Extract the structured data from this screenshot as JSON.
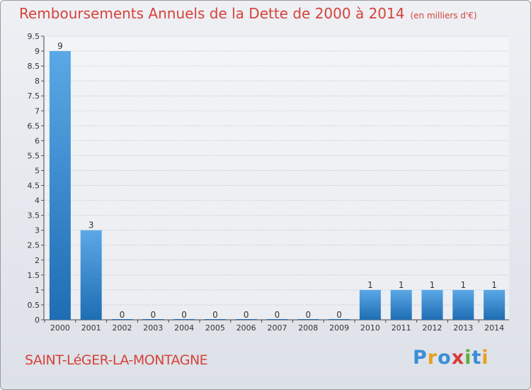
{
  "header": {
    "title": "Remboursements Annuels de la Dette de 2000 à 2014",
    "unit": "(en milliers d'€)"
  },
  "footer": {
    "commune": "SAINT-LéGER-LA-MONTAGNE",
    "logo_letters": [
      "P",
      "r",
      "o",
      "x",
      "i",
      "t",
      "i"
    ],
    "logo_text": "Proxiti"
  },
  "colors": {
    "title": "#d6423a",
    "bar_top": "#5aa8e6",
    "bar_bottom": "#1f6db3",
    "grid": "#b8bcc4",
    "logo": [
      "#3a8ed6",
      "#e8a020",
      "#3a8ed6",
      "#d63a3a",
      "#5ab03a",
      "#3a8ed6",
      "#e8a020"
    ]
  },
  "chart_data": {
    "type": "bar",
    "title": "Remboursements Annuels de la Dette de 2000 à 2014",
    "unit": "(en milliers d'€)",
    "categories": [
      "2000",
      "2001",
      "2002",
      "2003",
      "2004",
      "2005",
      "2006",
      "2007",
      "2008",
      "2009",
      "2010",
      "2011",
      "2012",
      "2013",
      "2014"
    ],
    "values": [
      9,
      3,
      0,
      0,
      0,
      0,
      0,
      0,
      0,
      0,
      1,
      1,
      1,
      1,
      1
    ],
    "data_labels": [
      "9",
      "3",
      "0",
      "0",
      "0",
      "0",
      "0",
      "0",
      "0",
      "0",
      "1",
      "1",
      "1",
      "1",
      "1"
    ],
    "yticks": [
      "0",
      "0.5",
      "1",
      "1.5",
      "2",
      "2.5",
      "3",
      "3.5",
      "4",
      "4.5",
      "5",
      "5.5",
      "6",
      "6.5",
      "7",
      "7.5",
      "8",
      "8.5",
      "9",
      "9.5"
    ],
    "ylim": [
      0,
      9.5
    ],
    "grid": true
  }
}
